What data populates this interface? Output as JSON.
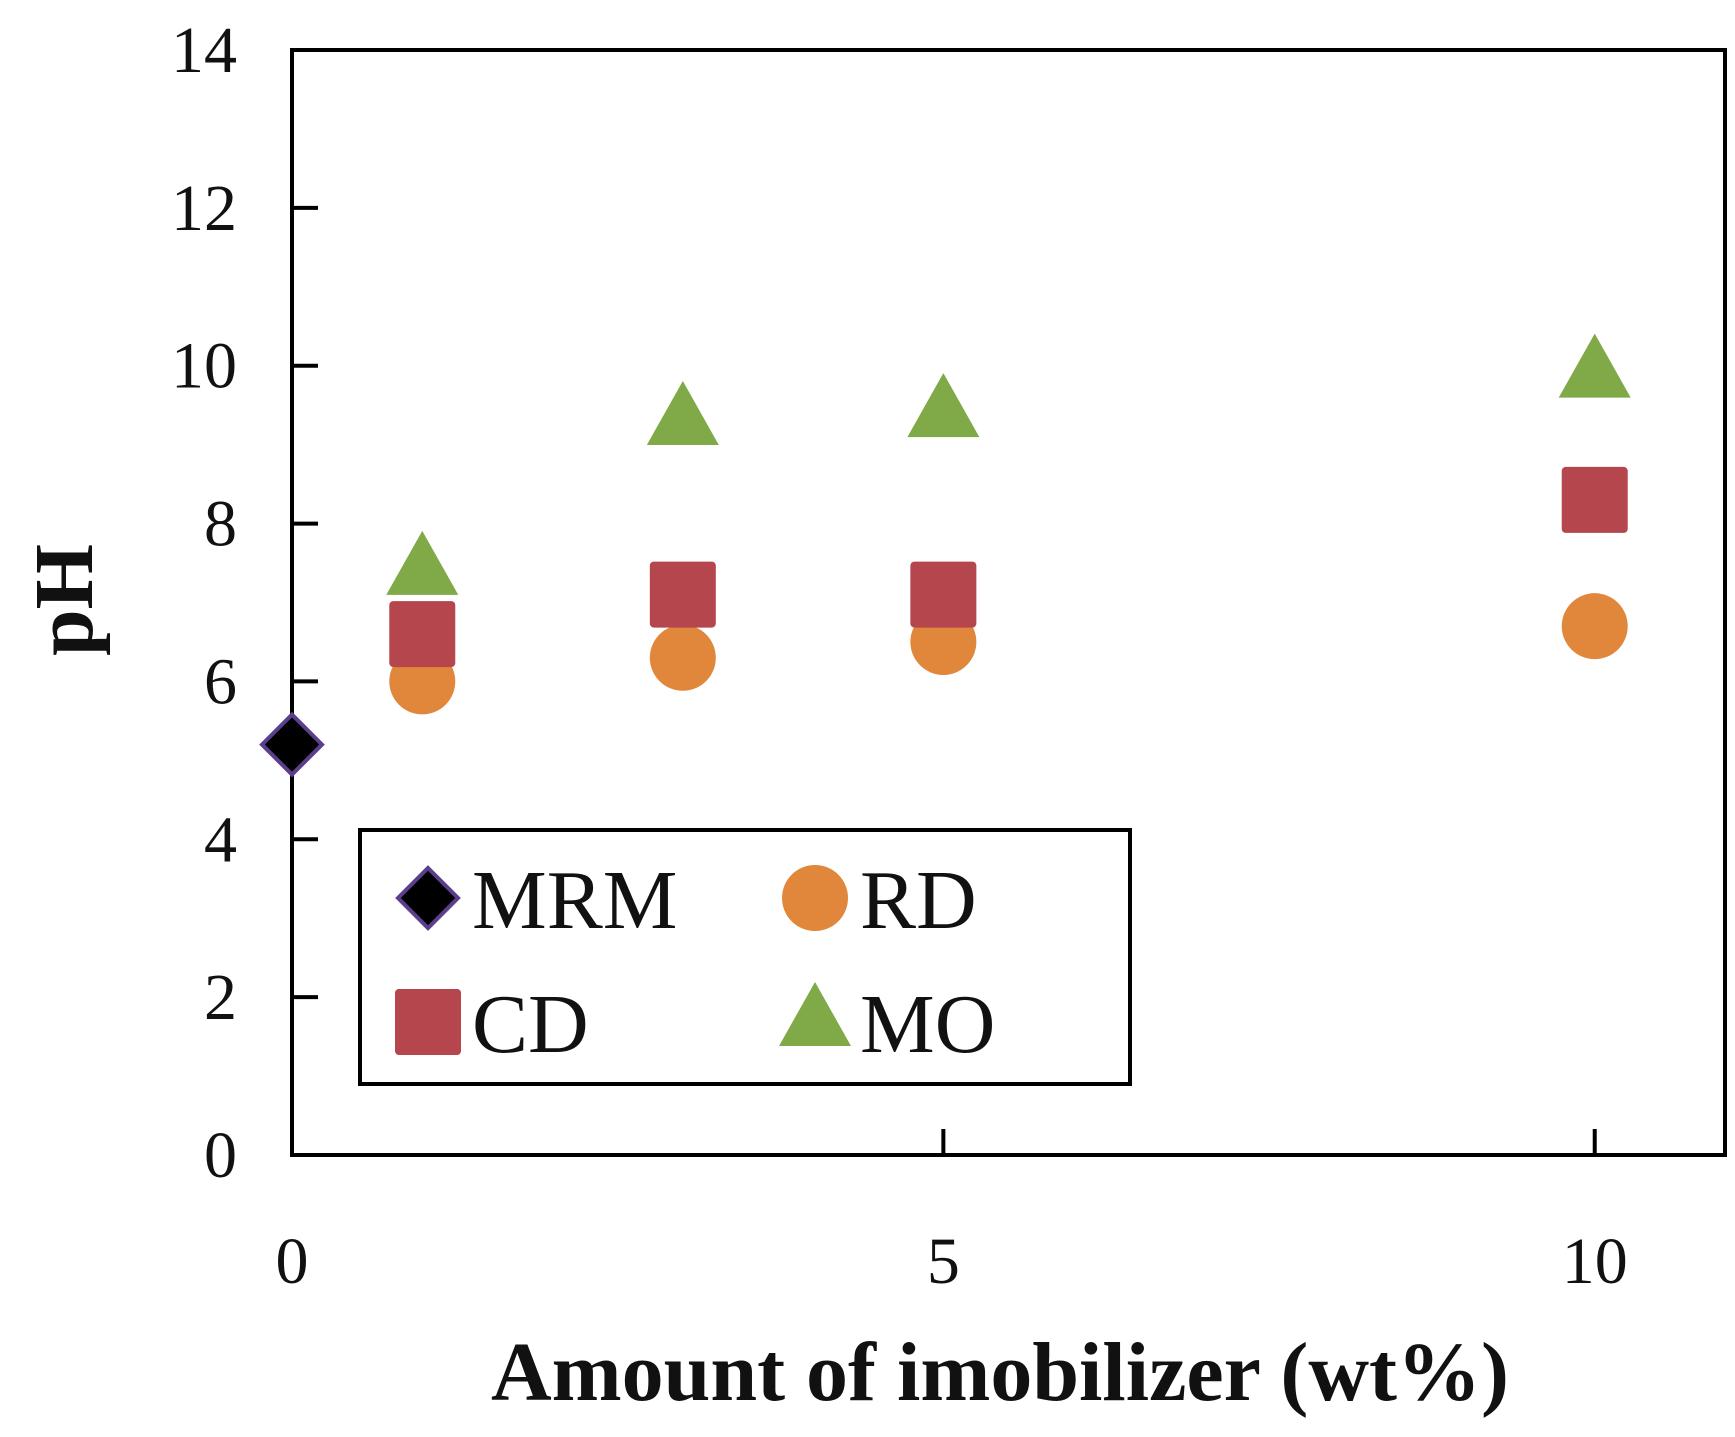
{
  "chart_data": {
    "type": "scatter",
    "title": "",
    "xlabel": "Amount of imobilizer (wt%)",
    "ylabel": "pH",
    "xlim": [
      0,
      11
    ],
    "ylim": [
      0,
      14
    ],
    "xticks": [
      0,
      5,
      10
    ],
    "xtick_labels": [
      "0",
      "5",
      "10"
    ],
    "yticks": [
      0,
      2,
      4,
      6,
      8,
      10,
      12,
      14
    ],
    "ytick_labels": [
      "0",
      "2",
      "4",
      "6",
      "8",
      "10",
      "12",
      "14"
    ],
    "grid": false,
    "legend_position": "bottom-left",
    "series": [
      {
        "name": "MRM",
        "marker": "diamond",
        "color": "#000000",
        "edge": "#5b3f8c",
        "x": [
          0
        ],
        "y": [
          5.2
        ]
      },
      {
        "name": "RD",
        "marker": "circle",
        "color": "#e0873b",
        "x": [
          1,
          3,
          5,
          10
        ],
        "y": [
          6.0,
          6.3,
          6.5,
          6.7
        ]
      },
      {
        "name": "CD",
        "marker": "square",
        "color": "#b5464d",
        "x": [
          1,
          3,
          5,
          10
        ],
        "y": [
          6.6,
          7.1,
          7.1,
          8.3
        ]
      },
      {
        "name": "MO",
        "marker": "triangle",
        "color": "#7faa47",
        "x": [
          1,
          3,
          5,
          10
        ],
        "y": [
          7.4,
          9.3,
          9.4,
          9.9
        ]
      }
    ]
  }
}
